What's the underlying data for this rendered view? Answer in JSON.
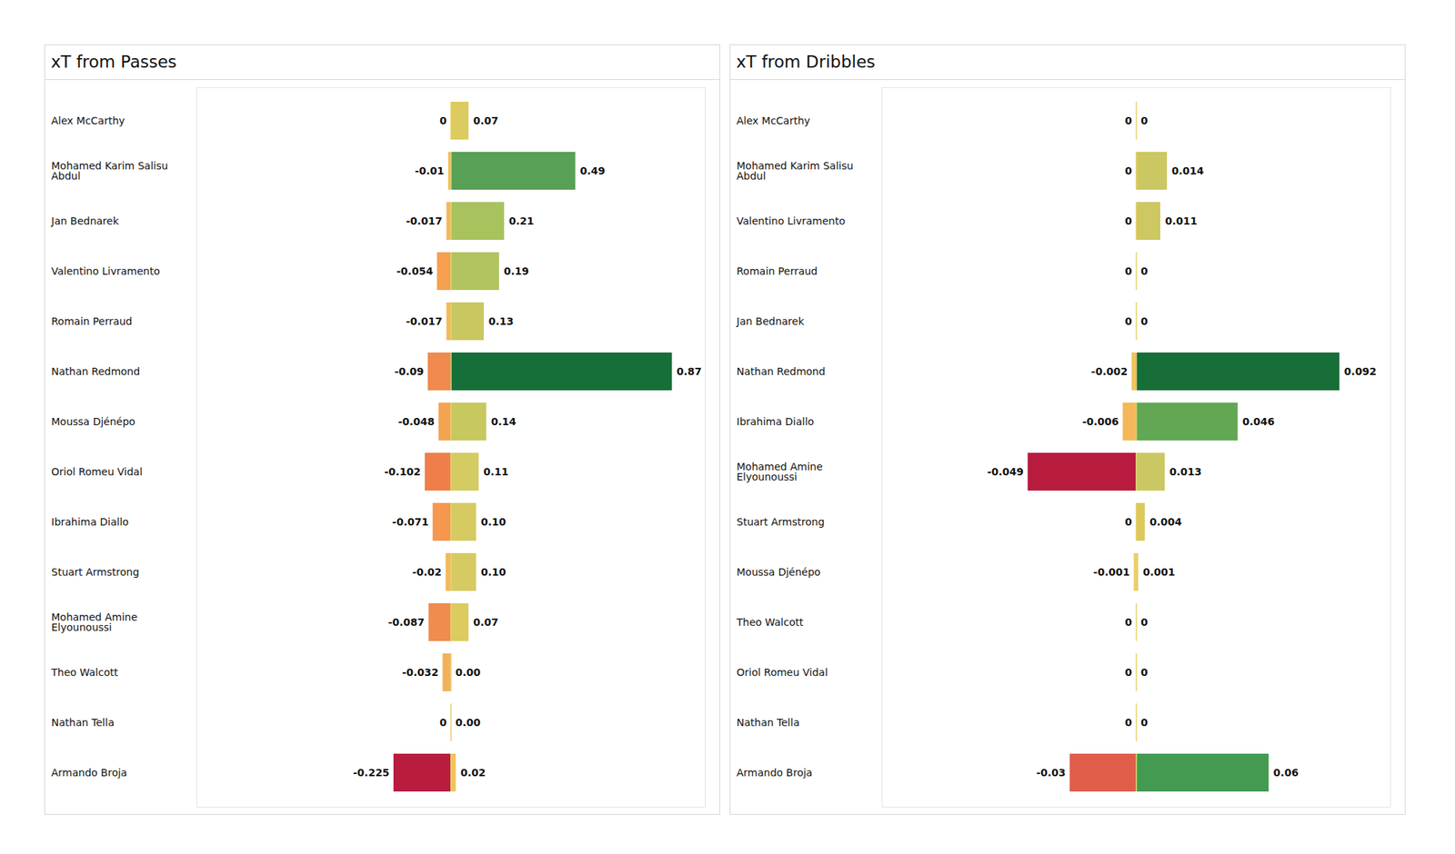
{
  "chart_data": [
    {
      "type": "bar",
      "title": "xT from Passes",
      "orientation": "horizontal",
      "data_labels": true,
      "tick_labels": "y",
      "xlim": [
        -1.0,
        1.0
      ],
      "categories": [
        "Alex McCarthy",
        "Mohamed Karim Salisu Abdul",
        "Jan Bednarek",
        "Valentino Livramento",
        "Romain Perraud",
        "Nathan Redmond",
        "Moussa Djénépo",
        "Oriol Romeu Vidal",
        "Ibrahima Diallo",
        "Stuart Armstrong",
        "Mohamed Amine Elyounoussi",
        "Theo Walcott",
        "Nathan Tella",
        "Armando Broja"
      ],
      "series": [
        {
          "values": [
            0,
            -0.01,
            -0.017,
            -0.054,
            -0.017,
            -0.09,
            -0.048,
            -0.102,
            -0.071,
            -0.02,
            -0.087,
            -0.032,
            0,
            -0.225
          ],
          "value_labels": [
            "0",
            "-0.01",
            "-0.017",
            "-0.054",
            "-0.017",
            "-0.09",
            "-0.048",
            "-0.102",
            "-0.071",
            "-0.02",
            "-0.087",
            "-0.032",
            "0",
            "-0.225"
          ],
          "colors": [
            "#f3c35e",
            "#f3c05e",
            "#f3b95a",
            "#f6a050",
            "#f3b95a",
            "#f08a4e",
            "#f4a352",
            "#ef7f4a",
            "#f5974f",
            "#f4b85a",
            "#f08c4e",
            "#f3b25a",
            "#f3c35e",
            "#b81c3e"
          ]
        },
        {
          "values": [
            0.07,
            0.49,
            0.21,
            0.19,
            0.13,
            0.87,
            0.14,
            0.11,
            0.1,
            0.1,
            0.07,
            0,
            0,
            0.02
          ],
          "value_labels": [
            "0.07",
            "0.49",
            "0.21",
            "0.19",
            "0.13",
            "0.87",
            "0.14",
            "0.11",
            "0.10",
            "0.10",
            "0.07",
            "0.00",
            "0.00",
            "0.02"
          ],
          "colors": [
            "#dccb5e",
            "#57a055",
            "#a8c25d",
            "#b2c45f",
            "#c9c860",
            "#166e38",
            "#c8c860",
            "#d4cb62",
            "#d6cb62",
            "#d6cb62",
            "#dccb5e",
            "#f4c35a",
            "#f4c35a",
            "#f0c45a"
          ]
        }
      ]
    },
    {
      "type": "bar",
      "title": "xT from Dribbles",
      "orientation": "horizontal",
      "data_labels": true,
      "tick_labels": "y",
      "xlim": [
        -0.115,
        0.115
      ],
      "categories": [
        "Alex McCarthy",
        "Mohamed Karim Salisu Abdul",
        "Valentino Livramento",
        "Romain Perraud",
        "Jan Bednarek",
        "Nathan Redmond",
        "Ibrahima Diallo",
        "Mohamed Amine Elyounoussi",
        "Stuart Armstrong",
        "Moussa Djénépo",
        "Theo Walcott",
        "Oriol Romeu Vidal",
        "Nathan Tella",
        "Armando Broja"
      ],
      "series": [
        {
          "values": [
            0,
            0,
            0,
            0,
            0,
            -0.002,
            -0.006,
            -0.049,
            0,
            -0.001,
            0,
            0,
            0,
            -0.03
          ],
          "value_labels": [
            "0",
            "0",
            "0",
            "0",
            "0",
            "-0.002",
            "-0.006",
            "-0.049",
            "0",
            "-0.001",
            "0",
            "0",
            "0",
            "-0.03"
          ],
          "colors": [
            "#f0c35a",
            "#f0c35a",
            "#f0c35a",
            "#f0c35a",
            "#f0c35a",
            "#f0c35a",
            "#f4b85a",
            "#b81c3e",
            "#f0c35a",
            "#efca65",
            "#f0c35a",
            "#f0c35a",
            "#f0c35a",
            "#e05d4a"
          ]
        },
        {
          "values": [
            0,
            0.014,
            0.011,
            0,
            0,
            0.092,
            0.046,
            0.013,
            0.004,
            0.001,
            0,
            0,
            0,
            0.06
          ],
          "value_labels": [
            "0",
            "0.014",
            "0.011",
            "0",
            "0",
            "0.092",
            "0.046",
            "0.013",
            "0.004",
            "0.001",
            "0",
            "0",
            "0",
            "0.06"
          ],
          "colors": [
            "#e9cc6a",
            "#cbc863",
            "#cdc862",
            "#e9cc6a",
            "#e9cc6a",
            "#186e38",
            "#62a854",
            "#cbc863",
            "#dcc85c",
            "#e9cc6a",
            "#e9cc6a",
            "#e9cc6a",
            "#e9cc6a",
            "#449a50"
          ]
        }
      ]
    }
  ]
}
